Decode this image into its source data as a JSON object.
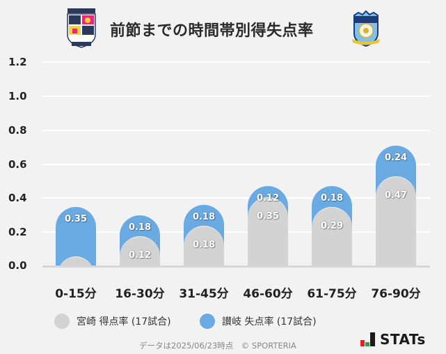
{
  "header": {
    "title": "前節までの時間帯別得失点率",
    "left_logo": "miyazaki-crest",
    "right_logo": "kamatamare-sanuki-crest"
  },
  "colors": {
    "background": "#f2f2f2",
    "series_miyazaki": "#d3d3d3",
    "series_sanuki": "#6aaae3",
    "gridline": "#ffffff",
    "baseline": "#d6d6d6"
  },
  "chart_data": {
    "type": "bar",
    "stacked": true,
    "title": "前節までの時間帯別得失点率",
    "xlabel": "",
    "ylabel": "",
    "ylim": [
      0,
      1.2
    ],
    "yticks": [
      "0.0",
      "0.2",
      "0.4",
      "0.6",
      "0.8",
      "1.0",
      "1.2"
    ],
    "grid": true,
    "legend_position": "bottom",
    "categories": [
      "0-15分",
      "16-30分",
      "31-45分",
      "46-60分",
      "61-75分",
      "76-90分"
    ],
    "series": [
      {
        "name": "宮崎 得点率 (17試合)",
        "color": "#d3d3d3",
        "values": [
          0,
          0.12,
          0.18,
          0.35,
          0.29,
          0.47
        ],
        "labels": [
          "",
          "0.12",
          "0.18",
          "0.35",
          "0.29",
          "0.47"
        ]
      },
      {
        "name": "讃岐 失点率 (17試合)",
        "color": "#6aaae3",
        "values": [
          0.35,
          0.18,
          0.18,
          0.12,
          0.18,
          0.24
        ],
        "labels": [
          "0.35",
          "0.18",
          "0.18",
          "0.12",
          "0.18",
          "0.24"
        ]
      }
    ]
  },
  "legend": {
    "items": [
      {
        "label": "宮崎 得点率 (17試合)",
        "icon": "grey-circle"
      },
      {
        "label": "讃岐 失点率 (17試合)",
        "icon": "blue-circle"
      }
    ]
  },
  "footer": {
    "note": "データは2025/06/23時点　© SPORTERIA",
    "brand": "STATs"
  }
}
